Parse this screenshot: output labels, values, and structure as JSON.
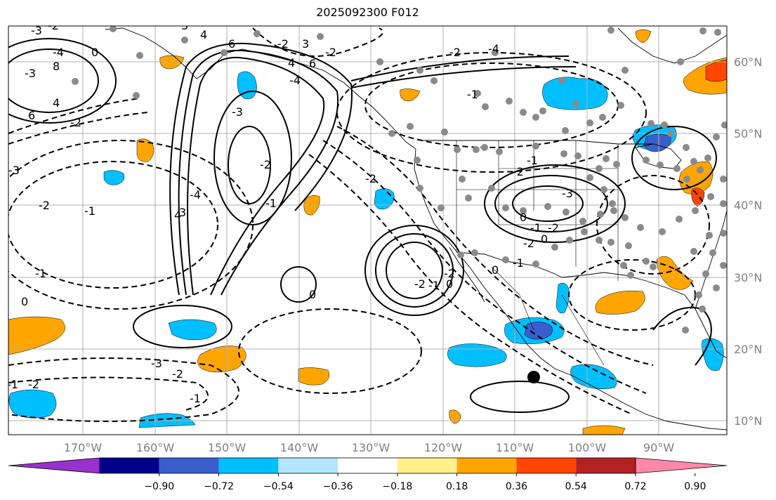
{
  "figure": {
    "title": "2025092300 F012"
  },
  "axes": {
    "lon_labels": [
      "170°W",
      "160°W",
      "150°W",
      "140°W",
      "130°W",
      "120°W",
      "110°W",
      "100°W",
      "90°W"
    ],
    "lat_labels": [
      "60°N",
      "50°N",
      "40°N",
      "30°N",
      "20°N",
      "10°N"
    ],
    "label_color": "#808080"
  },
  "colorbar": {
    "tick_labels": [
      "−0.90",
      "−0.72",
      "−0.54",
      "−0.36",
      "−0.18",
      "0.18",
      "0.36",
      "0.54",
      "0.72",
      "0.90"
    ],
    "colors": [
      "#9932cc",
      "#00008b",
      "#3a5fcd",
      "#00bfff",
      "#b3e5fc",
      "#ffffff",
      "#fff08c",
      "#ffa500",
      "#ff4500",
      "#b22222",
      "#ff88aa"
    ]
  },
  "shading_colors": {
    "blue": "#00bfff",
    "lightblue": "#b3e5fc",
    "royal": "#3a5fcd",
    "orange": "#ffa500",
    "red": "#ff4500"
  },
  "contour_labels": [
    "-3",
    "-2",
    "-4",
    "0",
    "-3",
    "8",
    "4",
    "6",
    "-2",
    "3",
    "4",
    "6",
    "-2",
    "3",
    "-2",
    "4",
    "6",
    "-4",
    "-3",
    "-2",
    "-1",
    "-4",
    "3",
    "-3",
    "-2",
    "-1",
    "4",
    "-1",
    "0",
    "-1",
    "-2",
    "-3",
    "-2",
    "-1",
    "-2",
    "-2",
    "-4",
    "-1",
    "-1",
    "-2",
    "-3",
    "-1",
    "-2",
    "-2",
    "0",
    "-2",
    "-1",
    "0",
    "-2",
    "0",
    "-1",
    "0",
    "0"
  ],
  "marker": {
    "name": "storm-center"
  }
}
